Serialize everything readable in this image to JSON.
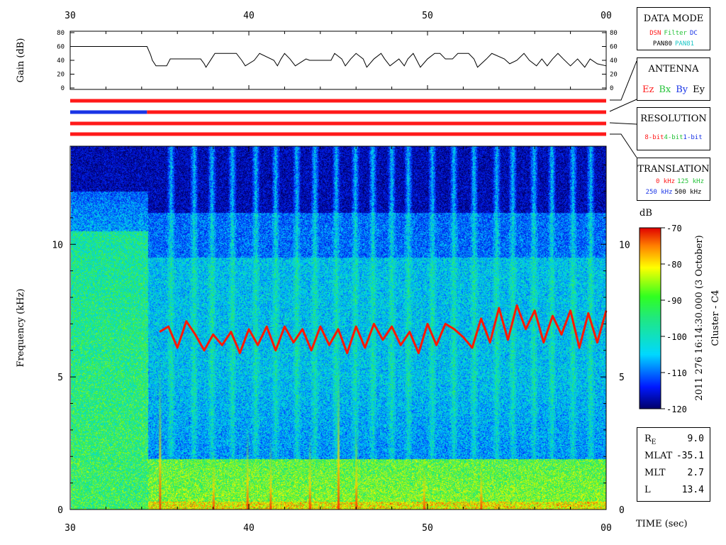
{
  "colors": {
    "red": "#ff1a1a",
    "blue": "#1a35e6",
    "green": "#26c33a",
    "cyan": "#18c6c6",
    "black": "#000000"
  },
  "data_mode": {
    "title": "DATA MODE",
    "row1": [
      {
        "text": "DSN",
        "color": "red"
      },
      {
        "text": "Filter",
        "color": "green"
      },
      {
        "text": "DC",
        "color": "blue"
      }
    ],
    "row2": [
      {
        "text": "PAN80",
        "color": "black"
      },
      {
        "text": "PAN81",
        "color": "cyan"
      }
    ]
  },
  "antenna": {
    "title": "ANTENNA",
    "items": [
      {
        "text": "Ez",
        "color": "red"
      },
      {
        "text": "Bx",
        "color": "green"
      },
      {
        "text": "By",
        "color": "blue"
      },
      {
        "text": "Ey",
        "color": "black"
      }
    ]
  },
  "resolution": {
    "title": "RESOLUTION",
    "items": [
      {
        "text": "8-bit",
        "color": "red"
      },
      {
        "text": "4-bit",
        "color": "green"
      },
      {
        "text": "1-bit",
        "color": "blue"
      }
    ]
  },
  "translation": {
    "title": "TRANSLATION",
    "row1": [
      {
        "text": "0 kHz",
        "color": "red"
      },
      {
        "text": "125 kHz",
        "color": "green"
      }
    ],
    "row2": [
      {
        "text": "250 kHz",
        "color": "blue"
      },
      {
        "text": "500 kHz",
        "color": "black"
      }
    ]
  },
  "position": [
    {
      "label": "R",
      "sub": "E",
      "value": "9.0"
    },
    {
      "label": "MLAT",
      "sub": "",
      "value": "-35.1"
    },
    {
      "label": "MLT",
      "sub": "",
      "value": "2.7"
    },
    {
      "label": "L",
      "sub": "",
      "value": "13.4"
    }
  ],
  "chart_data": [
    {
      "type": "line",
      "ylabel": "Gain (dB)",
      "ylim": [
        0,
        80
      ],
      "yticks": [
        "0",
        "20",
        "40",
        "60",
        "80"
      ],
      "xlim": [
        30,
        60
      ],
      "xticks": [
        "30",
        "40",
        "50",
        "00"
      ],
      "x": [
        30.0,
        34.3,
        34.5,
        34.6,
        34.8,
        35.4,
        35.6,
        37.3,
        37.5,
        37.6,
        37.9,
        38.1,
        39.3,
        39.6,
        39.8,
        40.3,
        40.6,
        41.4,
        41.6,
        41.8,
        42.0,
        42.3,
        42.6,
        43.2,
        43.4,
        44.6,
        44.8,
        45.2,
        45.4,
        45.7,
        46.0,
        46.4,
        46.6,
        47.0,
        47.4,
        47.6,
        47.9,
        48.4,
        48.7,
        48.9,
        49.2,
        49.4,
        49.6,
        50.0,
        50.4,
        50.7,
        51.0,
        51.4,
        51.7,
        52.3,
        52.6,
        52.8,
        53.3,
        53.6,
        54.3,
        54.6,
        55.0,
        55.4,
        55.7,
        56.1,
        56.4,
        56.7,
        57.0,
        57.3,
        57.6,
        58.0,
        58.4,
        58.8,
        59.1,
        59.5,
        60.0
      ],
      "y": [
        60,
        60,
        48,
        40,
        32,
        32,
        42,
        42,
        35,
        30,
        42,
        50,
        50,
        40,
        32,
        40,
        50,
        40,
        32,
        42,
        50,
        42,
        32,
        42,
        40,
        40,
        50,
        42,
        32,
        42,
        50,
        42,
        30,
        42,
        50,
        42,
        32,
        42,
        32,
        42,
        50,
        40,
        30,
        42,
        50,
        50,
        42,
        42,
        50,
        50,
        42,
        30,
        42,
        50,
        42,
        35,
        40,
        50,
        40,
        32,
        42,
        32,
        42,
        50,
        42,
        32,
        42,
        30,
        42,
        35,
        32
      ]
    },
    {
      "type": "timeline",
      "tracks": [
        {
          "segments": [
            {
              "x0": 30,
              "x1": 60,
              "color": "red"
            }
          ]
        },
        {
          "segments": [
            {
              "x0": 30,
              "x1": 34.3,
              "color": "blue"
            },
            {
              "x0": 34.3,
              "x1": 60,
              "color": "red"
            }
          ]
        },
        {
          "segments": [
            {
              "x0": 30,
              "x1": 60,
              "color": "red"
            }
          ]
        },
        {
          "segments": [
            {
              "x0": 30,
              "x1": 60,
              "color": "red"
            }
          ]
        }
      ]
    },
    {
      "type": "heatmap",
      "xlabel": "TIME (sec)",
      "ylabel": "Frequency (kHz)",
      "xlim": [
        30,
        60
      ],
      "ylim": [
        0,
        13.7
      ],
      "xticks": [
        "30",
        "40",
        "50",
        "00"
      ],
      "yticks": [
        "0",
        "5",
        "10"
      ],
      "colorbar": {
        "label": "dB",
        "ticks": [
          "-70",
          "-80",
          "-90",
          "-100",
          "-110",
          "-120"
        ],
        "range": [
          -120,
          -70
        ]
      },
      "caption": "2011 276 16:14:30.000 (3 October)",
      "caption2": "Cluster - C4",
      "mode_change_x": 34.3,
      "background_level_db": -95,
      "quiet_level_db": -112,
      "low_band_khz": [
        0,
        1.9
      ],
      "low_band_db": -88,
      "emission_line": {
        "color_db": -75,
        "x": [
          35.0,
          35.5,
          36.0,
          36.5,
          37.0,
          37.5,
          38.0,
          38.5,
          39.0,
          39.5,
          40.0,
          40.5,
          41.0,
          41.5,
          42.0,
          42.5,
          43.0,
          43.5,
          44.0,
          44.5,
          45.0,
          45.5,
          46.0,
          46.5,
          47.0,
          47.5,
          48.0,
          48.5,
          49.0,
          49.5,
          50.0,
          50.5,
          51.0,
          51.5,
          52.0,
          52.5,
          53.0,
          53.5,
          54.0,
          54.5,
          55.0,
          55.5,
          56.0,
          56.5,
          57.0,
          57.5,
          58.0,
          58.5,
          59.0,
          59.5,
          60.0
        ],
        "y": [
          6.7,
          6.9,
          6.1,
          7.1,
          6.6,
          6.0,
          6.6,
          6.2,
          6.7,
          5.9,
          6.8,
          6.2,
          6.9,
          6.0,
          6.9,
          6.3,
          6.8,
          6.0,
          6.9,
          6.2,
          6.8,
          5.9,
          6.9,
          6.1,
          7.0,
          6.4,
          6.9,
          6.2,
          6.7,
          5.9,
          7.0,
          6.2,
          7.0,
          6.8,
          6.5,
          6.1,
          7.2,
          6.3,
          7.6,
          6.4,
          7.7,
          6.8,
          7.5,
          6.3,
          7.3,
          6.6,
          7.5,
          6.1,
          7.4,
          6.3,
          7.5
        ]
      }
    }
  ]
}
